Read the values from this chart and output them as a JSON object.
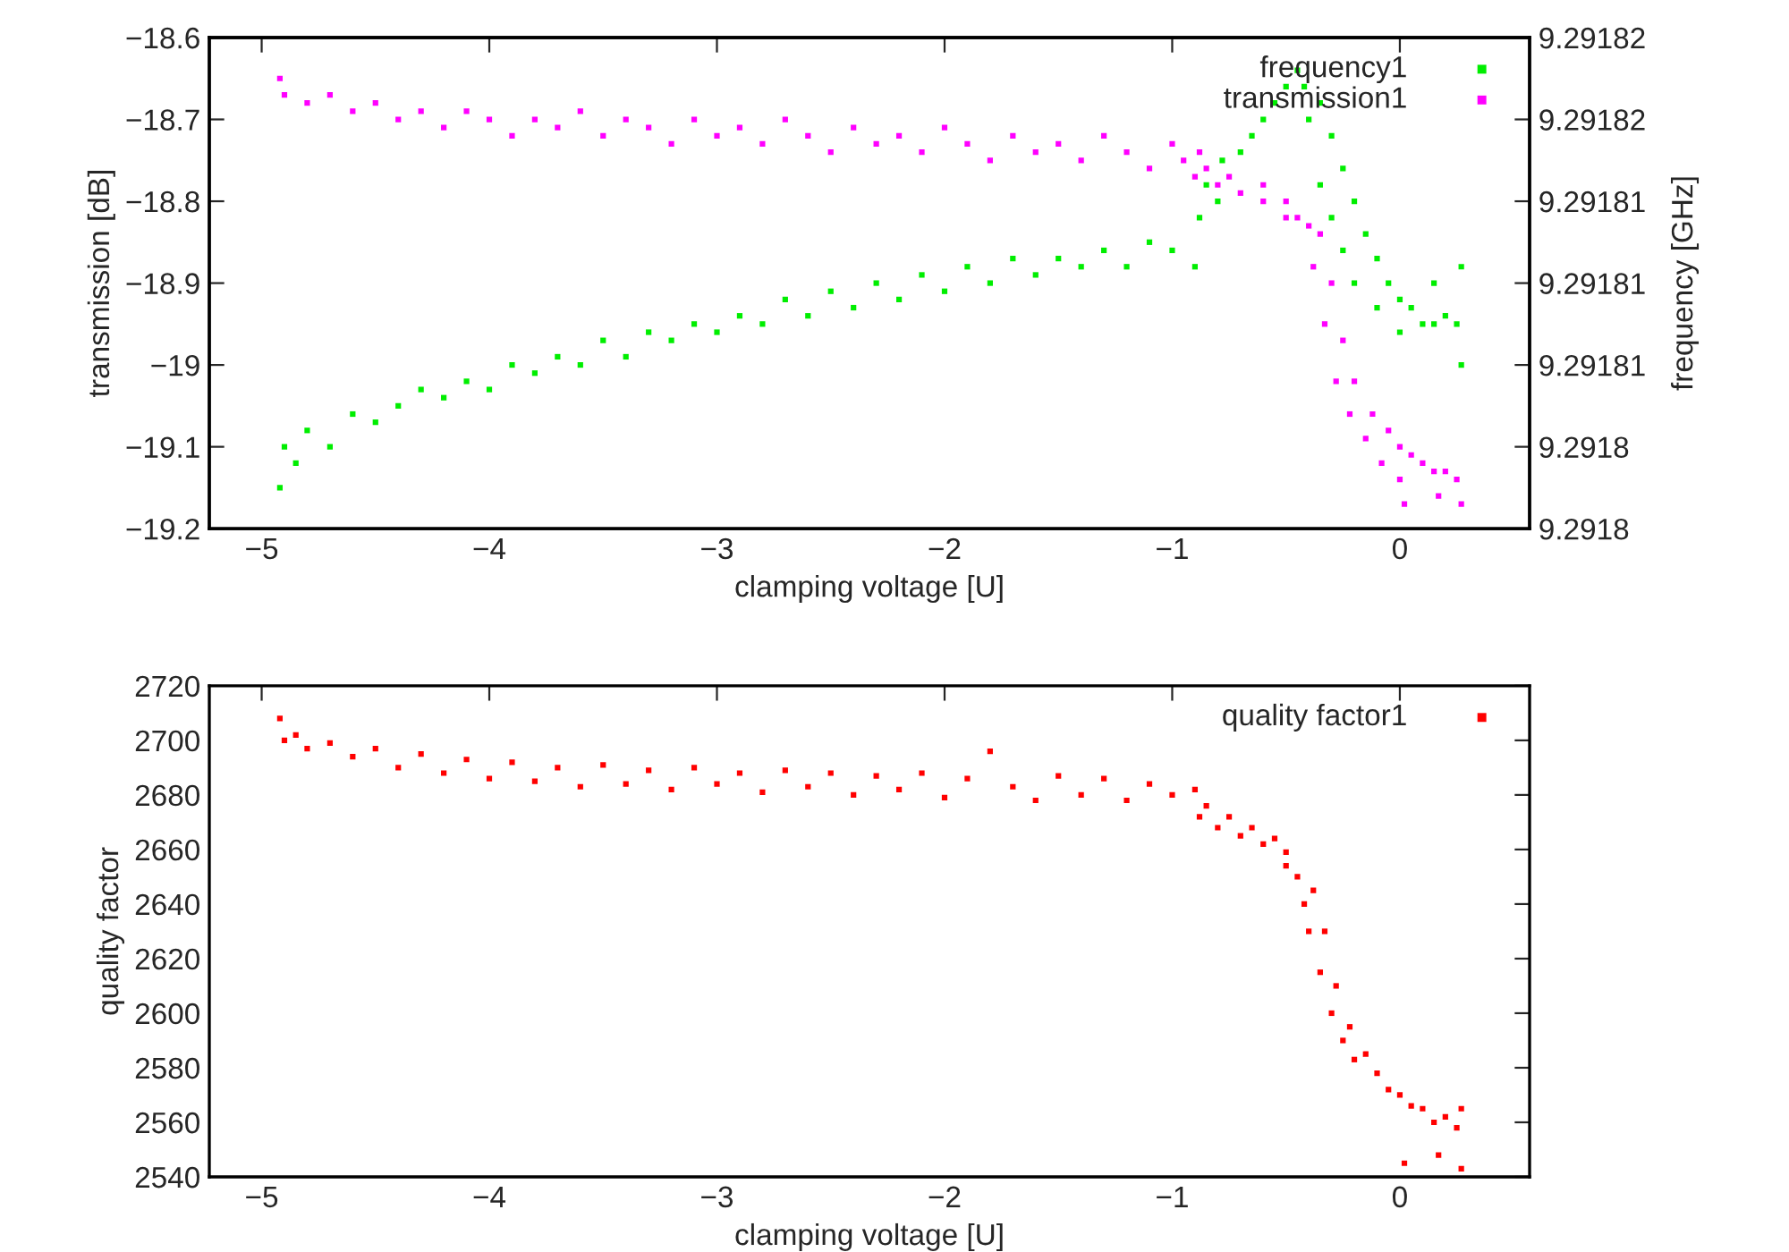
{
  "chart_data": [
    {
      "type": "scatter",
      "xlabel": "clamping voltage [U]",
      "ylabel": "transmission [dB]",
      "y2label": "frequency [GHz]",
      "marker": "square",
      "grid": false,
      "legend": "top right",
      "xlim": [
        -5.23,
        0.57
      ],
      "xticks": [
        {
          "value": -5,
          "label": "−5"
        },
        {
          "value": -4,
          "label": "−4"
        },
        {
          "value": -3,
          "label": "−3"
        },
        {
          "value": -2,
          "label": "−2"
        },
        {
          "value": -1,
          "label": "−1"
        },
        0
      ],
      "ylim": [
        -19.2,
        -18.6
      ],
      "yticks": [
        {
          "value": -19.2,
          "label": "−19.2"
        },
        {
          "value": -19.1,
          "label": "−19.1"
        },
        {
          "value": -19.0,
          "label": "−19"
        },
        {
          "value": -18.9,
          "label": "−18.9"
        },
        {
          "value": -18.8,
          "label": "−18.8"
        },
        {
          "value": -18.7,
          "label": "−18.7"
        },
        {
          "value": -18.6,
          "label": "−18.6"
        }
      ],
      "y2lim": [
        9.291798,
        9.291822
      ],
      "y2ticks": [
        {
          "value": 9.291798,
          "label": "9.2918"
        },
        {
          "value": 9.291802,
          "label": "9.2918"
        },
        {
          "value": 9.291806,
          "label": "9.29181"
        },
        {
          "value": 9.29181,
          "label": "9.29181"
        },
        {
          "value": 9.291814,
          "label": "9.29181"
        },
        {
          "value": 9.291818,
          "label": "9.29182"
        },
        {
          "value": 9.291822,
          "label": "9.29182"
        }
      ],
      "series": [
        {
          "name": "frequency1",
          "color": "#00ee00",
          "axis": "y2",
          "x": [
            -4.92,
            -4.9,
            -4.85,
            -4.8,
            -4.7,
            -4.6,
            -4.5,
            -4.4,
            -4.3,
            -4.2,
            -4.1,
            -4.0,
            -3.9,
            -3.8,
            -3.7,
            -3.6,
            -3.5,
            -3.4,
            -3.3,
            -3.2,
            -3.1,
            -3.0,
            -2.9,
            -2.8,
            -2.7,
            -2.6,
            -2.5,
            -2.4,
            -2.3,
            -2.2,
            -2.1,
            -2.0,
            -1.9,
            -1.8,
            -1.7,
            -1.6,
            -1.5,
            -1.4,
            -1.3,
            -1.2,
            -1.1,
            -1.0,
            -0.9,
            -0.88,
            -0.85,
            -0.8,
            -0.78,
            -0.7,
            -0.65,
            -0.6,
            -0.55,
            -0.5,
            -0.45,
            -0.42,
            -0.4,
            -0.35,
            -0.3,
            -0.35,
            -0.3,
            -0.25,
            -0.2,
            -0.25,
            -0.2,
            -0.15,
            -0.1,
            -0.1,
            -0.05,
            0.0,
            0.0,
            0.05,
            0.1,
            0.15,
            0.15,
            0.2,
            0.25,
            0.27,
            0.27
          ],
          "values": [
            9.2918,
            9.291802,
            9.2918012,
            9.2918028,
            9.291802,
            9.2918036,
            9.2918032,
            9.291804,
            9.2918048,
            9.2918044,
            9.2918052,
            9.2918048,
            9.291806,
            9.2918056,
            9.2918064,
            9.291806,
            9.2918072,
            9.2918064,
            9.2918076,
            9.2918072,
            9.291808,
            9.2918076,
            9.2918084,
            9.291808,
            9.2918092,
            9.2918084,
            9.2918096,
            9.2918088,
            9.29181,
            9.2918092,
            9.2918104,
            9.2918096,
            9.2918108,
            9.29181,
            9.2918112,
            9.2918104,
            9.2918112,
            9.2918108,
            9.2918116,
            9.2918108,
            9.291812,
            9.2918116,
            9.2918108,
            9.2918132,
            9.2918148,
            9.291814,
            9.291816,
            9.2918164,
            9.2918172,
            9.291818,
            9.2918188,
            9.2918196,
            9.2918204,
            9.2918196,
            9.291818,
            9.2918188,
            9.2918172,
            9.2918148,
            9.2918132,
            9.2918156,
            9.291814,
            9.2918116,
            9.29181,
            9.2918124,
            9.2918112,
            9.2918088,
            9.29181,
            9.2918092,
            9.2918076,
            9.2918088,
            9.291808,
            9.29181,
            9.291808,
            9.2918084,
            9.291808,
            9.2918108,
            9.291806
          ]
        },
        {
          "name": "transmission1",
          "color": "#ff00ff",
          "x": [
            -4.92,
            -4.9,
            -4.8,
            -4.7,
            -4.6,
            -4.5,
            -4.4,
            -4.3,
            -4.2,
            -4.1,
            -4.0,
            -3.9,
            -3.8,
            -3.7,
            -3.6,
            -3.5,
            -3.4,
            -3.3,
            -3.2,
            -3.1,
            -3.0,
            -2.9,
            -2.8,
            -2.7,
            -2.6,
            -2.5,
            -2.4,
            -2.3,
            -2.2,
            -2.1,
            -2.0,
            -1.9,
            -1.8,
            -1.7,
            -1.6,
            -1.5,
            -1.4,
            -1.3,
            -1.2,
            -1.1,
            -1.0,
            -0.95,
            -0.9,
            -0.88,
            -0.85,
            -0.8,
            -0.75,
            -0.7,
            -0.6,
            -0.6,
            -0.5,
            -0.5,
            -0.45,
            -0.4,
            -0.38,
            -0.35,
            -0.33,
            -0.3,
            -0.28,
            -0.25,
            -0.22,
            -0.2,
            -0.15,
            -0.12,
            -0.08,
            -0.05,
            0.0,
            0.0,
            0.02,
            0.05,
            0.1,
            0.15,
            0.17,
            0.2,
            0.25,
            0.27
          ],
          "values": [
            -18.65,
            -18.67,
            -18.68,
            -18.67,
            -18.69,
            -18.68,
            -18.7,
            -18.69,
            -18.71,
            -18.69,
            -18.7,
            -18.72,
            -18.7,
            -18.71,
            -18.69,
            -18.72,
            -18.7,
            -18.71,
            -18.73,
            -18.7,
            -18.72,
            -18.71,
            -18.73,
            -18.7,
            -18.72,
            -18.74,
            -18.71,
            -18.73,
            -18.72,
            -18.74,
            -18.71,
            -18.73,
            -18.75,
            -18.72,
            -18.74,
            -18.73,
            -18.75,
            -18.72,
            -18.74,
            -18.76,
            -18.73,
            -18.75,
            -18.77,
            -18.74,
            -18.76,
            -18.78,
            -18.77,
            -18.79,
            -18.78,
            -18.8,
            -18.8,
            -18.82,
            -18.82,
            -18.83,
            -18.88,
            -18.84,
            -18.95,
            -18.9,
            -19.02,
            -18.97,
            -19.06,
            -19.02,
            -19.09,
            -19.06,
            -19.12,
            -19.08,
            -19.14,
            -19.1,
            -19.17,
            -19.11,
            -19.12,
            -19.13,
            -19.16,
            -19.13,
            -19.14,
            -19.17
          ]
        }
      ]
    },
    {
      "type": "scatter",
      "xlabel": "clamping voltage [U]",
      "ylabel": "quality factor",
      "marker": "square",
      "grid": false,
      "legend": "top right",
      "xlim": [
        -5.23,
        0.57
      ],
      "xticks": [
        {
          "value": -5,
          "label": "−5"
        },
        {
          "value": -4,
          "label": "−4"
        },
        {
          "value": -3,
          "label": "−3"
        },
        {
          "value": -2,
          "label": "−2"
        },
        {
          "value": -1,
          "label": "−1"
        },
        0
      ],
      "ylim": [
        2540,
        2720
      ],
      "yticks": [
        2540,
        2560,
        2580,
        2600,
        2620,
        2640,
        2660,
        2680,
        2700,
        2720
      ],
      "series": [
        {
          "name": "quality factor1",
          "color": "#ff0000",
          "x": [
            -4.92,
            -4.9,
            -4.85,
            -4.8,
            -4.7,
            -4.6,
            -4.5,
            -4.4,
            -4.3,
            -4.2,
            -4.1,
            -4.0,
            -3.9,
            -3.8,
            -3.7,
            -3.6,
            -3.5,
            -3.4,
            -3.3,
            -3.2,
            -3.1,
            -3.0,
            -2.9,
            -2.8,
            -2.7,
            -2.6,
            -2.5,
            -2.4,
            -2.3,
            -2.2,
            -2.1,
            -2.0,
            -1.9,
            -1.8,
            -1.7,
            -1.6,
            -1.5,
            -1.4,
            -1.3,
            -1.2,
            -1.1,
            -1.0,
            -0.9,
            -0.88,
            -0.85,
            -0.8,
            -0.75,
            -0.7,
            -0.65,
            -0.6,
            -0.55,
            -0.5,
            -0.5,
            -0.45,
            -0.42,
            -0.4,
            -0.38,
            -0.35,
            -0.33,
            -0.3,
            -0.28,
            -0.25,
            -0.22,
            -0.2,
            -0.15,
            -0.1,
            -0.05,
            0.0,
            0.02,
            0.05,
            0.1,
            0.15,
            0.17,
            0.2,
            0.25,
            0.27,
            0.27
          ],
          "values": [
            2708,
            2700,
            2702,
            2697,
            2699,
            2694,
            2697,
            2690,
            2695,
            2688,
            2693,
            2686,
            2692,
            2685,
            2690,
            2683,
            2691,
            2684,
            2689,
            2682,
            2690,
            2684,
            2688,
            2681,
            2689,
            2683,
            2688,
            2680,
            2687,
            2682,
            2688,
            2679,
            2686,
            2696,
            2683,
            2678,
            2687,
            2680,
            2686,
            2678,
            2684,
            2680,
            2682,
            2672,
            2676,
            2668,
            2672,
            2665,
            2668,
            2662,
            2664,
            2659,
            2654,
            2650,
            2640,
            2630,
            2645,
            2615,
            2630,
            2600,
            2610,
            2590,
            2595,
            2583,
            2585,
            2578,
            2572,
            2570,
            2545,
            2566,
            2565,
            2560,
            2548,
            2562,
            2558,
            2565,
            2543
          ]
        }
      ]
    }
  ]
}
